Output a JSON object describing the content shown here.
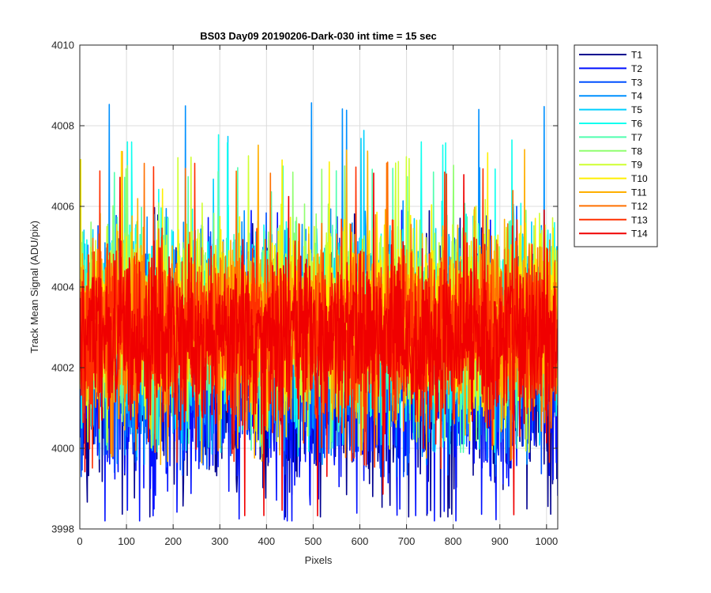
{
  "chart_data": {
    "type": "line",
    "title": "BS03 Day09 20190206-Dark-030 int time = 15 sec",
    "xlabel": "Pixels",
    "ylabel": "Track Mean Signal (ADU/pix)",
    "xlim": [
      0,
      1024
    ],
    "ylim": [
      3998,
      4010
    ],
    "xticks": [
      0,
      100,
      200,
      300,
      400,
      500,
      600,
      700,
      800,
      900,
      1000
    ],
    "yticks": [
      3998,
      4000,
      4002,
      4004,
      4006,
      4008,
      4010
    ],
    "grid": true,
    "legend_position": "outside-top-right",
    "points_per_series": 1024,
    "series": [
      {
        "name": "T1",
        "color": "#00008f",
        "center": 4001.9,
        "spread": 1.9,
        "min": 3998.3,
        "max": 4006.0
      },
      {
        "name": "T2",
        "color": "#0010ff",
        "center": 4001.6,
        "spread": 1.8,
        "min": 3998.2,
        "max": 4005.9
      },
      {
        "name": "T3",
        "color": "#0050ff",
        "center": 4002.3,
        "spread": 1.6,
        "min": 3999.3,
        "max": 4006.0
      },
      {
        "name": "T4",
        "color": "#0090ff",
        "center": 4002.8,
        "spread": 1.6,
        "min": 3999.6,
        "max": 4008.6
      },
      {
        "name": "T5",
        "color": "#00d0ff",
        "center": 4003.0,
        "spread": 1.5,
        "min": 3999.8,
        "max": 4007.9
      },
      {
        "name": "T6",
        "color": "#10ffef",
        "center": 4003.1,
        "spread": 1.5,
        "min": 3999.9,
        "max": 4007.8
      },
      {
        "name": "T7",
        "color": "#50ffaf",
        "center": 4003.1,
        "spread": 1.4,
        "min": 3999.9,
        "max": 4007.0
      },
      {
        "name": "T8",
        "color": "#90ff6f",
        "center": 4003.2,
        "spread": 1.4,
        "min": 4000.0,
        "max": 4007.1
      },
      {
        "name": "T9",
        "color": "#cfff30",
        "center": 4003.2,
        "spread": 1.4,
        "min": 3999.9,
        "max": 4007.3
      },
      {
        "name": "T10",
        "color": "#ffef00",
        "center": 4003.2,
        "spread": 1.4,
        "min": 3999.9,
        "max": 4007.4
      },
      {
        "name": "T11",
        "color": "#ffaf00",
        "center": 4003.1,
        "spread": 1.4,
        "min": 3999.6,
        "max": 4007.6
      },
      {
        "name": "T12",
        "color": "#ff7000",
        "center": 4003.0,
        "spread": 1.4,
        "min": 3999.7,
        "max": 4007.1
      },
      {
        "name": "T13",
        "color": "#ff3000",
        "center": 4002.9,
        "spread": 1.4,
        "min": 3999.5,
        "max": 4007.1
      },
      {
        "name": "T14",
        "color": "#f00000",
        "center": 4002.7,
        "spread": 1.4,
        "min": 3998.2,
        "max": 4006.9
      }
    ]
  }
}
